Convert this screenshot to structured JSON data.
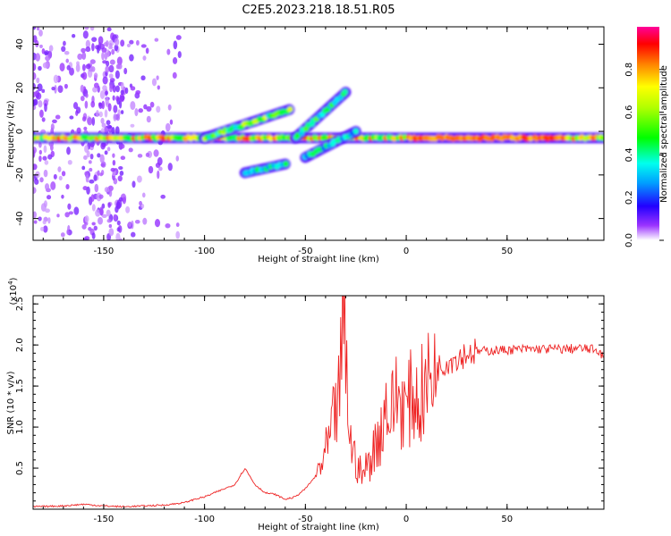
{
  "title": "C2E5.2023.218.18.51.R05",
  "chart_data": [
    {
      "type": "heatmap",
      "name": "spectrogram",
      "xlabel": "Height of straight line (km)",
      "ylabel": "Frequency (Hz)",
      "xlim": [
        -185,
        98
      ],
      "ylim": [
        -50,
        48
      ],
      "xticks": [
        -150,
        -100,
        -50,
        0,
        50
      ],
      "yticks": [
        -40,
        -20,
        0,
        20,
        40
      ],
      "colorbar": {
        "label": "Normalized spectral amplitude",
        "range": [
          0,
          1
        ],
        "ticks": [
          0.0,
          0.2,
          0.4,
          0.6,
          0.8
        ],
        "tick_labels": [
          "0.0",
          "0.2",
          "0.4",
          "0.6",
          "0.8"
        ]
      },
      "features": [
        {
          "name": "carrier-band",
          "x": [
            -185,
            98
          ],
          "freq_hz": -3,
          "peak_amplitude": 0.9
        },
        {
          "name": "rising-trace",
          "x": [
            -100,
            -58
          ],
          "freq_hz": [
            -3,
            10
          ],
          "peak_amplitude": 0.7
        },
        {
          "name": "steep-trace-upper",
          "x": [
            -55,
            -30
          ],
          "freq_hz": [
            -3,
            18
          ],
          "peak_amplitude": 0.55
        },
        {
          "name": "steep-trace-lower",
          "x": [
            -50,
            -25
          ],
          "freq_hz": [
            -12,
            0
          ],
          "peak_amplitude": 0.45
        },
        {
          "name": "short-segment",
          "x": [
            -80,
            -60
          ],
          "freq_hz": [
            -19,
            -15
          ],
          "peak_amplitude": 0.5
        }
      ]
    },
    {
      "type": "line",
      "name": "snr",
      "xlabel": "Height of straight line (km)",
      "ylabel": "SNR (10 * v/v)",
      "scale_label": "(x10",
      "scale_exponent": "4",
      "xlim": [
        -185,
        98
      ],
      "ylim": [
        0,
        2.6
      ],
      "xticks": [
        -150,
        -100,
        -50,
        0,
        50
      ],
      "yticks": [
        0.5,
        1.0,
        1.5,
        2.0,
        2.5
      ],
      "ytick_labels": [
        "0.5",
        "1.0",
        "1.5",
        "2.0",
        "2.5"
      ],
      "series": [
        {
          "name": "SNR",
          "color": "#ee2222",
          "x": [
            -185,
            -170,
            -160,
            -150,
            -140,
            -130,
            -120,
            -110,
            -105,
            -100,
            -95,
            -90,
            -85,
            -80,
            -75,
            -70,
            -65,
            -60,
            -55,
            -50,
            -45,
            -42,
            -38,
            -35,
            -33,
            -31,
            -29,
            -27,
            -25,
            -22,
            -20,
            -18,
            -15,
            -12,
            -10,
            -8,
            -5,
            -2,
            0,
            3,
            6,
            10,
            15,
            20,
            25,
            30,
            35,
            40,
            50,
            60,
            70,
            80,
            85,
            90,
            95,
            98
          ],
          "values": [
            0.03,
            0.04,
            0.06,
            0.04,
            0.03,
            0.04,
            0.05,
            0.08,
            0.12,
            0.15,
            0.2,
            0.25,
            0.3,
            0.5,
            0.3,
            0.2,
            0.18,
            0.12,
            0.15,
            0.25,
            0.4,
            0.55,
            0.8,
            1.2,
            1.4,
            2.4,
            1.3,
            0.7,
            0.6,
            0.4,
            0.5,
            0.6,
            0.8,
            1.0,
            1.3,
            1.1,
            1.4,
            1.3,
            1.2,
            1.4,
            1.3,
            1.5,
            1.7,
            1.8,
            1.85,
            1.9,
            1.92,
            1.93,
            1.94,
            1.95,
            1.95,
            1.95,
            1.96,
            1.95,
            1.94,
            1.85
          ]
        }
      ]
    }
  ]
}
